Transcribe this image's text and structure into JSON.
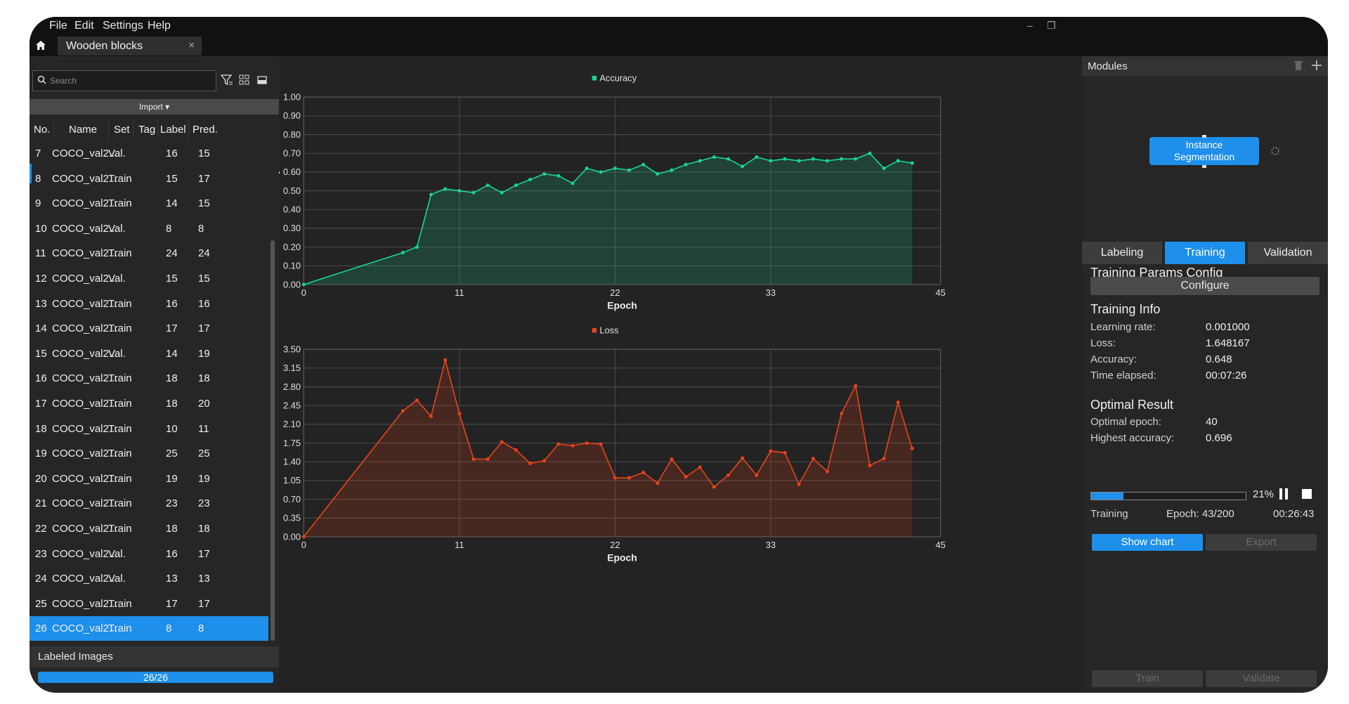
{
  "menu": [
    "File",
    "Edit",
    "Settings",
    "Help"
  ],
  "window_controls": {
    "minimize": "–",
    "restore": "❐"
  },
  "project_tab": {
    "title": "Wooden blocks",
    "close": "×"
  },
  "left_panel": {
    "search_placeholder": "Search",
    "import_label": "Import ▾",
    "columns": [
      "No.",
      "Name",
      "Set",
      "Tag",
      "Label",
      "Pred."
    ],
    "rows": [
      {
        "no": "7",
        "name": "COCO_val2...",
        "set": "Val.",
        "tag": "",
        "label": "16",
        "pred": "15"
      },
      {
        "no": "8",
        "name": "COCO_val2...",
        "set": "Train",
        "tag": "",
        "label": "15",
        "pred": "17"
      },
      {
        "no": "9",
        "name": "COCO_val2...",
        "set": "Train",
        "tag": "",
        "label": "14",
        "pred": "15"
      },
      {
        "no": "10",
        "name": "COCO_val2...",
        "set": "Val.",
        "tag": "",
        "label": "8",
        "pred": "8"
      },
      {
        "no": "11",
        "name": "COCO_val2...",
        "set": "Train",
        "tag": "",
        "label": "24",
        "pred": "24"
      },
      {
        "no": "12",
        "name": "COCO_val2...",
        "set": "Val.",
        "tag": "",
        "label": "15",
        "pred": "15"
      },
      {
        "no": "13",
        "name": "COCO_val2...",
        "set": "Train",
        "tag": "",
        "label": "16",
        "pred": "16"
      },
      {
        "no": "14",
        "name": "COCO_val2...",
        "set": "Train",
        "tag": "",
        "label": "17",
        "pred": "17"
      },
      {
        "no": "15",
        "name": "COCO_val2...",
        "set": "Val.",
        "tag": "",
        "label": "14",
        "pred": "19"
      },
      {
        "no": "16",
        "name": "COCO_val2...",
        "set": "Train",
        "tag": "",
        "label": "18",
        "pred": "18"
      },
      {
        "no": "17",
        "name": "COCO_val2...",
        "set": "Train",
        "tag": "",
        "label": "18",
        "pred": "20"
      },
      {
        "no": "18",
        "name": "COCO_val2...",
        "set": "Train",
        "tag": "",
        "label": "10",
        "pred": "11"
      },
      {
        "no": "19",
        "name": "COCO_val2...",
        "set": "Train",
        "tag": "",
        "label": "25",
        "pred": "25"
      },
      {
        "no": "20",
        "name": "COCO_val2...",
        "set": "Train",
        "tag": "",
        "label": "19",
        "pred": "19"
      },
      {
        "no": "21",
        "name": "COCO_val2...",
        "set": "Train",
        "tag": "",
        "label": "23",
        "pred": "23"
      },
      {
        "no": "22",
        "name": "COCO_val2...",
        "set": "Train",
        "tag": "",
        "label": "18",
        "pred": "18"
      },
      {
        "no": "23",
        "name": "COCO_val2...",
        "set": "Val.",
        "tag": "",
        "label": "16",
        "pred": "17"
      },
      {
        "no": "24",
        "name": "COCO_val2...",
        "set": "Val.",
        "tag": "",
        "label": "13",
        "pred": "13"
      },
      {
        "no": "25",
        "name": "COCO_val2...",
        "set": "Train",
        "tag": "",
        "label": "17",
        "pred": "17"
      },
      {
        "no": "26",
        "name": "COCO_val2...",
        "set": "Train",
        "tag": "",
        "label": "8",
        "pred": "8",
        "selected": true
      }
    ],
    "labeled_images_label": "Labeled Images",
    "labeled_progress": "26/26"
  },
  "chart_data": [
    {
      "type": "line",
      "title": "Accuracy",
      "xlabel": "Epoch",
      "ylabel": "Accuracy",
      "xlim": [
        0,
        45
      ],
      "ylim": [
        0,
        1
      ],
      "xticks": [
        "0",
        "11",
        "22",
        "33",
        "45"
      ],
      "yticks": [
        "0.00",
        "0.10",
        "0.20",
        "0.30",
        "0.40",
        "0.50",
        "0.60",
        "0.70",
        "0.80",
        "0.90",
        "1.00"
      ],
      "color": "#19d39a",
      "grid": true,
      "legend": "top-center",
      "x": [
        0,
        7,
        8,
        9,
        10,
        11,
        12,
        13,
        14,
        15,
        16,
        17,
        18,
        19,
        20,
        21,
        22,
        23,
        24,
        25,
        26,
        27,
        28,
        29,
        30,
        31,
        32,
        33,
        34,
        35,
        36,
        37,
        38,
        39,
        40,
        41,
        42,
        43
      ],
      "y": [
        0.0,
        0.17,
        0.2,
        0.48,
        0.51,
        0.5,
        0.49,
        0.53,
        0.49,
        0.53,
        0.56,
        0.59,
        0.58,
        0.54,
        0.62,
        0.6,
        0.62,
        0.61,
        0.64,
        0.59,
        0.61,
        0.64,
        0.66,
        0.68,
        0.67,
        0.63,
        0.68,
        0.66,
        0.67,
        0.66,
        0.67,
        0.66,
        0.67,
        0.67,
        0.7,
        0.62,
        0.66,
        0.648
      ]
    },
    {
      "type": "line",
      "title": "Loss",
      "xlabel": "Epoch",
      "ylabel": "Loss",
      "xlim": [
        0,
        45
      ],
      "ylim": [
        0,
        3.5
      ],
      "xticks": [
        "0",
        "11",
        "22",
        "33",
        "45"
      ],
      "yticks": [
        "0.00",
        "0.35",
        "0.70",
        "1.05",
        "1.40",
        "1.75",
        "2.10",
        "2.45",
        "2.80",
        "3.15",
        "3.50"
      ],
      "color": "#e8431a",
      "grid": true,
      "legend": "top-center",
      "x": [
        0,
        7,
        8,
        9,
        10,
        11,
        12,
        13,
        14,
        15,
        16,
        17,
        18,
        19,
        20,
        21,
        22,
        23,
        24,
        25,
        26,
        27,
        28,
        29,
        30,
        31,
        32,
        33,
        34,
        35,
        36,
        37,
        38,
        39,
        40,
        41,
        42,
        43
      ],
      "y": [
        0.0,
        2.35,
        2.55,
        2.25,
        3.3,
        2.3,
        1.45,
        1.45,
        1.77,
        1.62,
        1.37,
        1.42,
        1.73,
        1.7,
        1.75,
        1.73,
        1.1,
        1.1,
        1.2,
        1.0,
        1.45,
        1.12,
        1.3,
        0.93,
        1.15,
        1.47,
        1.15,
        1.6,
        1.57,
        0.98,
        1.46,
        1.22,
        2.3,
        2.82,
        1.33,
        1.46,
        2.51,
        1.648
      ]
    }
  ],
  "right_panel": {
    "modules_title": "Modules",
    "module_node": [
      "Instance",
      "Segmentation"
    ],
    "tabs": [
      "Labeling",
      "Training",
      "Validation"
    ],
    "params_title": "Training Params Config",
    "configure_label": "Configure",
    "info_title": "Training Info",
    "info": [
      {
        "label": "Learning rate:",
        "value": "0.001000"
      },
      {
        "label": "Loss:",
        "value": "1.648167"
      },
      {
        "label": "Accuracy:",
        "value": "0.648"
      },
      {
        "label": "Time elapsed:",
        "value": "00:07:26"
      }
    ],
    "optimal_title": "Optimal Result",
    "optimal": [
      {
        "label": "Optimal epoch:",
        "value": "40"
      },
      {
        "label": "Highest accuracy:",
        "value": "0.696"
      }
    ],
    "progress_percent": "21%",
    "progress_fraction": 0.21,
    "status": "Training",
    "epoch": "Epoch: 43/200",
    "remaining": "00:26:43",
    "show_chart_label": "Show chart",
    "export_label": "Export",
    "train_label": "Train",
    "validate_label": "Validate"
  },
  "colors": {
    "accent": "#1e8fea",
    "accuracy": "#19d39a",
    "loss": "#e8431a"
  }
}
